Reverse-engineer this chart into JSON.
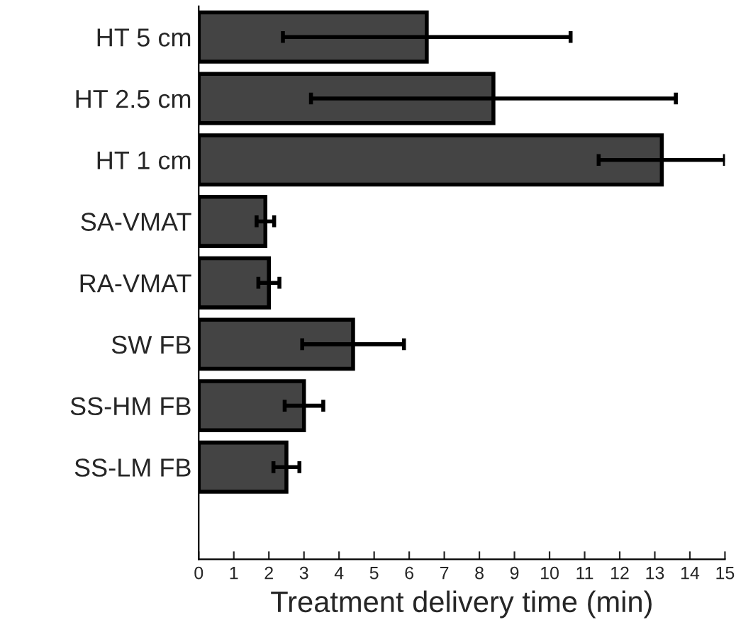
{
  "chart_data": {
    "type": "bar",
    "orientation": "horizontal",
    "xlabel": "Treatment delivery time (min)",
    "categories": [
      "HT 5 cm",
      "HT 2.5 cm",
      "HT 1 cm",
      "SA-VMAT",
      "RA-VMAT",
      "SW FB",
      "SS-HM FB",
      "SS-LM FB"
    ],
    "values": [
      6.5,
      8.4,
      13.2,
      1.9,
      2.0,
      4.4,
      3.0,
      2.5
    ],
    "errors": [
      4.1,
      5.2,
      1.8,
      0.25,
      0.3,
      1.45,
      0.55,
      0.37
    ],
    "color": "#444444",
    "xlim": [
      0,
      15
    ],
    "xticks": [
      0,
      1,
      2,
      3,
      4,
      5,
      6,
      7,
      8,
      9,
      10,
      11,
      12,
      13,
      14,
      15
    ],
    "grid": false,
    "legend": false
  }
}
